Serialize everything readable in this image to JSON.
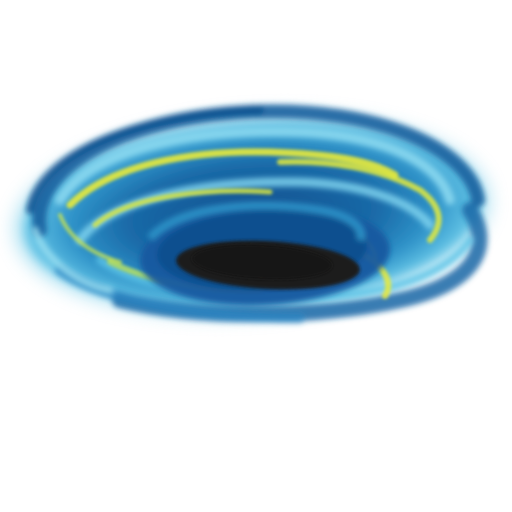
{
  "image": {
    "subject": "vortex-painting",
    "colors": {
      "background": "#ffffff",
      "deep_blue": "#0f4f8e",
      "mid_blue": "#2a86c3",
      "sky_blue": "#5cc3e6",
      "pale_cyan": "#9fe2f3",
      "yellow": "#e7ea3a",
      "lime": "#bde35a",
      "core": "#1d1b1a"
    }
  }
}
